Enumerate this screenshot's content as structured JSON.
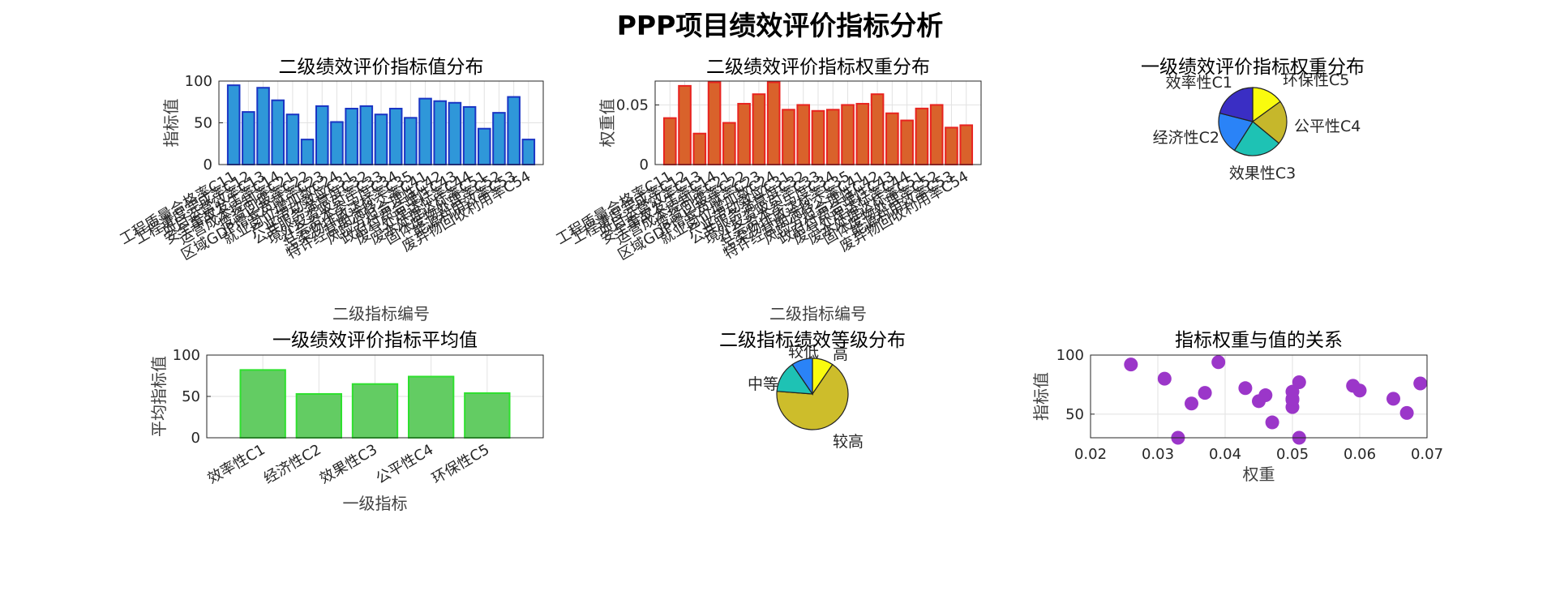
{
  "figure_title": "PPP项目绩效评价指标分析",
  "chart_data": [
    {
      "id": "secondary-values",
      "type": "bar",
      "title": "二级绩效评价指标值分布",
      "xlabel": "二级指标编号",
      "ylabel": "指标值",
      "ylim": [
        0,
        100
      ],
      "yticks": [
        0,
        50,
        100
      ],
      "grid": true,
      "bar_color": "#2f97d9",
      "edge_color": "#1a35c4",
      "categories": [
        "工程质量合格率C11",
        "工程进度完成率C12",
        "项目运营效率C13",
        "安全事故发生率C14",
        "运营成本控制率C21",
        "投资回报率C22",
        "区域GDP增长贡献率C23",
        "就业岗位增加数C24",
        "产业带动效应C31",
        "公共服务满意度C32",
        "境外投资吸引率C33",
        "社会资本参与度C34",
        "污染物排放达标率C35",
        "特许经营期满移交率C41",
        "风险分担合理性C42",
        "政府付费合理性C43",
        "废气处理达标率C44",
        "废水处理达标率C51",
        "固体废物处理率C52",
        "能源利用效率C53",
        "废弃物回收利用率C54"
      ],
      "values": [
        95,
        63,
        92,
        77,
        60,
        30,
        70,
        51,
        67,
        70,
        60,
        67,
        56,
        79,
        76,
        74,
        69,
        43,
        62,
        81,
        30
      ]
    },
    {
      "id": "secondary-weights",
      "type": "bar",
      "title": "二级绩效评价指标权重分布",
      "xlabel": "二级指标编号",
      "ylabel": "权重值",
      "ylim": [
        0,
        0.07
      ],
      "yticks": [
        0,
        0.05
      ],
      "grid": true,
      "bar_color": "#d9622b",
      "edge_color": "#e8231f",
      "categories": [
        "工程质量合格率C11",
        "工程进度完成率C12",
        "项目运营效率C13",
        "安全事故发生率C14",
        "运营成本控制率C21",
        "投资回报率C22",
        "区域GDP增长贡献率C23",
        "就业岗位增加数C24",
        "产业带动效应C31",
        "公共服务满意度C32",
        "境外投资吸引率C33",
        "社会资本参与度C34",
        "污染物排放达标率C35",
        "特许经营期满移交率C41",
        "风险分担合理性C42",
        "政府付费合理性C43",
        "废气处理达标率C44",
        "废水处理达标率C51",
        "固体废物处理率C52",
        "能源利用效率C53",
        "废弃物回收利用率C54"
      ],
      "values": [
        0.039,
        0.066,
        0.026,
        0.069,
        0.035,
        0.051,
        0.059,
        0.069,
        0.046,
        0.05,
        0.045,
        0.046,
        0.05,
        0.051,
        0.059,
        0.043,
        0.037,
        0.047,
        0.05,
        0.031,
        0.033
      ]
    },
    {
      "id": "primary-weights",
      "type": "pie",
      "title": "一级绩效评价指标权重分布",
      "labels": [
        "环保性C5",
        "公平性C4",
        "效果性C3",
        "经济性C2",
        "效率性C1"
      ],
      "values": [
        0.15,
        0.21,
        0.23,
        0.2,
        0.21
      ],
      "colors": [
        "#f9fb0e",
        "#c6b72b",
        "#1ec2b4",
        "#2a83f7",
        "#3a2ec4"
      ]
    },
    {
      "id": "primary-averages",
      "type": "bar",
      "title": "一级绩效评价指标平均值",
      "xlabel": "一级指标",
      "ylabel": "平均指标值",
      "ylim": [
        0,
        100
      ],
      "yticks": [
        0,
        50,
        100
      ],
      "grid": true,
      "bar_color": "#63cc63",
      "edge_color": "#2ee02e",
      "categories": [
        "效率性C1",
        "经济性C2",
        "效果性C3",
        "公平性C4",
        "环保性C5"
      ],
      "values": [
        82,
        53,
        65,
        74,
        54
      ]
    },
    {
      "id": "grade-distribution",
      "type": "pie",
      "title": "二级指标绩效等级分布",
      "labels": [
        "高",
        "较高",
        "中等",
        "较低"
      ],
      "values": [
        2,
        14,
        3,
        2
      ],
      "colors": [
        "#f9fb0e",
        "#cdbd2b",
        "#1ec2b4",
        "#2a83f7"
      ]
    },
    {
      "id": "weight-value-relation",
      "type": "scatter",
      "title": "指标权重与值的关系",
      "xlabel": "权重",
      "ylabel": "指标值",
      "xlim": [
        0.02,
        0.07
      ],
      "ylim": [
        30,
        100
      ],
      "xticks": [
        0.02,
        0.03,
        0.04,
        0.05,
        0.06,
        0.07
      ],
      "yticks": [
        50,
        100
      ],
      "grid": true,
      "color": "#9b36c9",
      "x": [
        0.026,
        0.031,
        0.033,
        0.035,
        0.037,
        0.039,
        0.043,
        0.045,
        0.046,
        0.047,
        0.05,
        0.05,
        0.05,
        0.05,
        0.051,
        0.051,
        0.059,
        0.06,
        0.065,
        0.067,
        0.069
      ],
      "y": [
        92,
        80,
        30,
        59,
        68,
        94,
        72,
        61,
        66,
        43,
        69,
        62,
        56,
        63,
        77,
        30,
        74,
        70,
        63,
        51,
        76
      ]
    }
  ]
}
